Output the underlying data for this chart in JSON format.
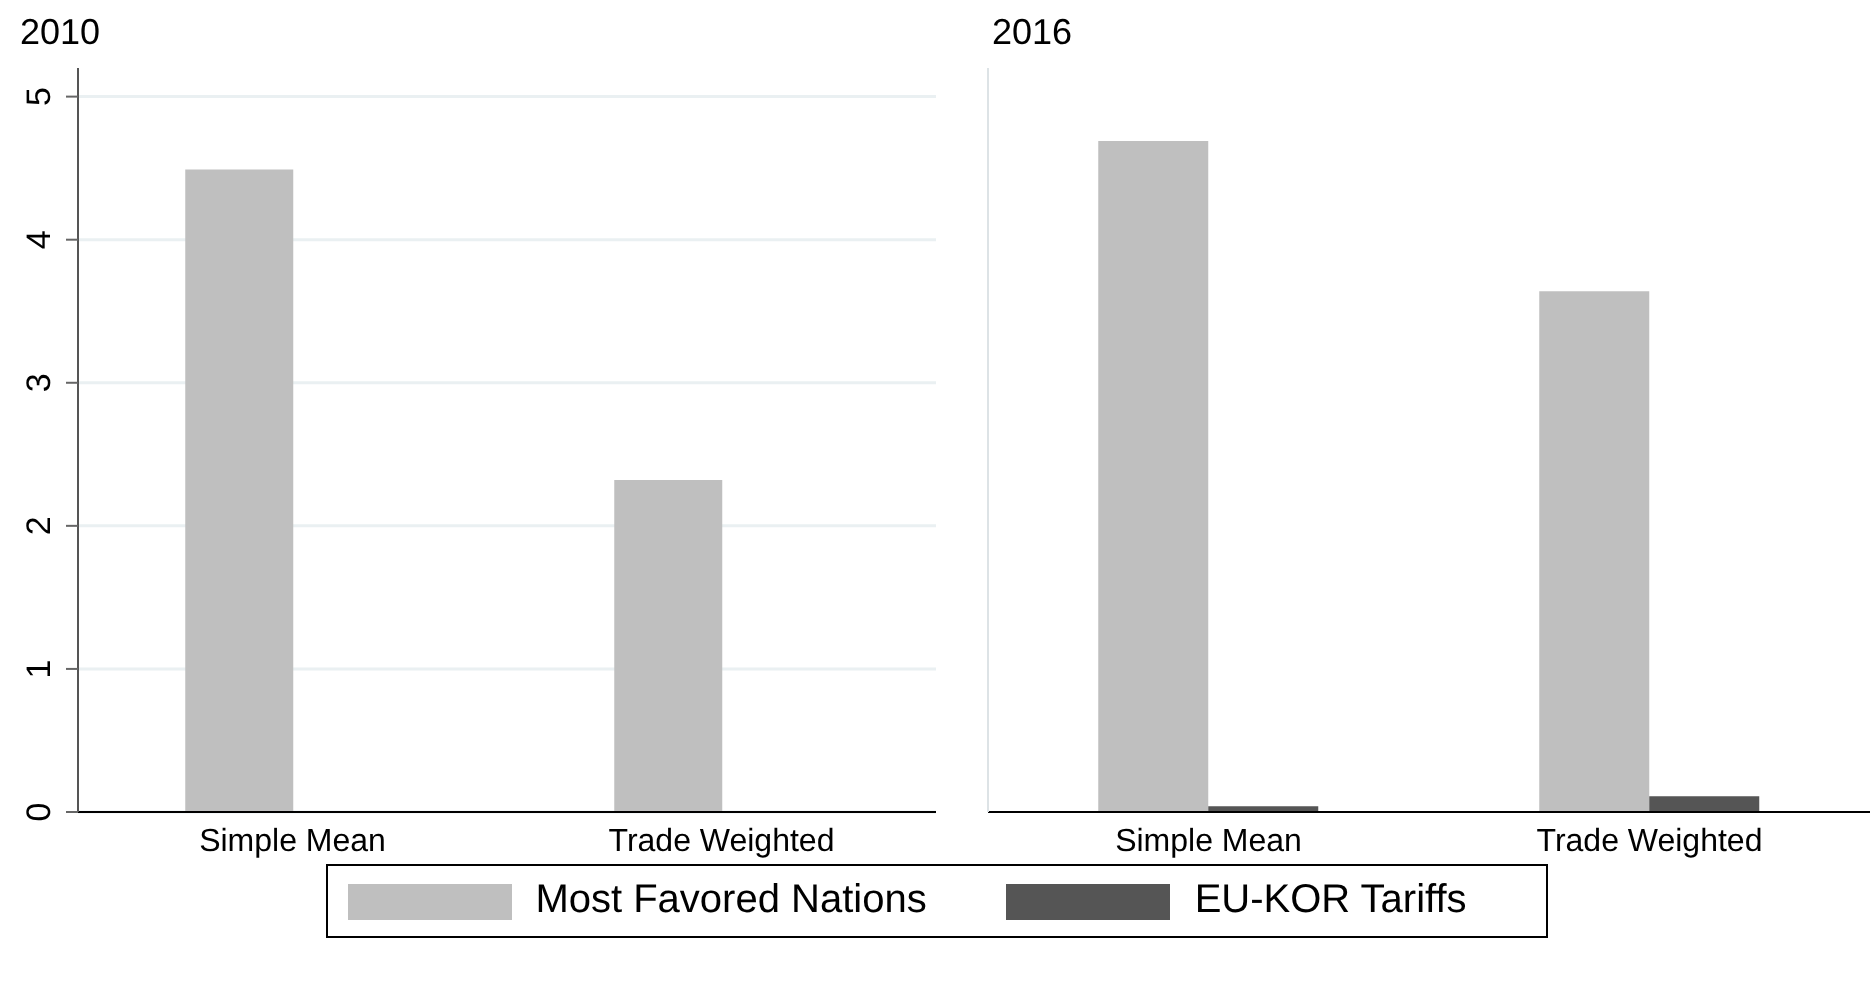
{
  "chart_data": [
    {
      "type": "bar",
      "title": "2010",
      "categories": [
        "Simple Mean",
        "Trade Weighted"
      ],
      "series": [
        {
          "name": "Most Favored Nations",
          "color": "#bfbfbf",
          "values": [
            4.49,
            2.32
          ]
        },
        {
          "name": "EU-KOR Tariffs",
          "color": "#555555",
          "values": [
            null,
            null
          ]
        }
      ],
      "ylim": [
        0,
        5.2
      ],
      "yticks": [
        0,
        1,
        2,
        3,
        4,
        5
      ],
      "grid": "y",
      "legend": "bottom"
    },
    {
      "type": "bar",
      "title": "2016",
      "categories": [
        "Simple Mean",
        "Trade Weighted"
      ],
      "series": [
        {
          "color": "#bfbfbf",
          "values": [
            4.69,
            3.64
          ]
        },
        {
          "color": "#555555",
          "values": [
            0.04,
            0.11
          ]
        }
      ],
      "ylim": [
        0,
        5.2
      ],
      "yticks": [
        0,
        1,
        2,
        3,
        4,
        5
      ],
      "grid": "y",
      "tick_labels": "x"
    }
  ]
}
